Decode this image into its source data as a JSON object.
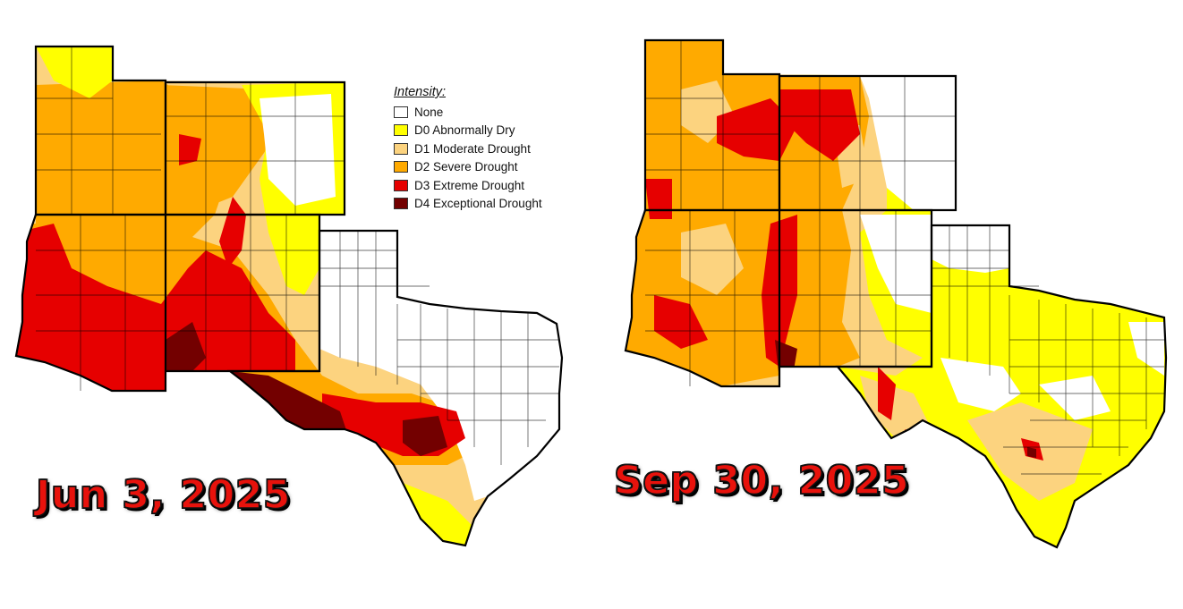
{
  "legend": {
    "title": "Intensity:",
    "items": [
      {
        "label": "None",
        "color": "#ffffff"
      },
      {
        "label": "D0 Abnormally Dry",
        "color": "#ffff00"
      },
      {
        "label": "D1 Moderate Drought",
        "color": "#fcd37f"
      },
      {
        "label": "D2 Severe Drought",
        "color": "#ffaa00"
      },
      {
        "label": "D3 Extreme Drought",
        "color": "#e60000"
      },
      {
        "label": "D4 Exceptional Drought",
        "color": "#730000"
      }
    ]
  },
  "maps": [
    {
      "date": "Jun 3, 2025"
    },
    {
      "date": "Sep 30, 2025"
    }
  ]
}
